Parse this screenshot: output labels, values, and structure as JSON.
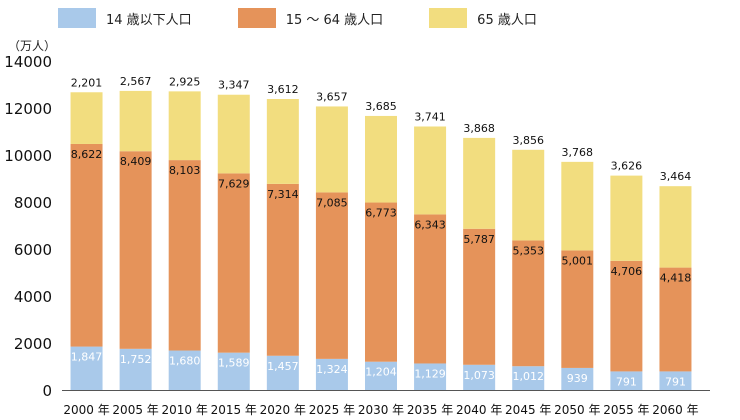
{
  "legend": {
    "items": [
      {
        "label": "14 歳以下人口",
        "color": "#a9c9ea"
      },
      {
        "label": "15 ～ 64 歳人口",
        "color": "#e5935a"
      },
      {
        "label": "65 歳人口",
        "color": "#f2dd7f"
      }
    ]
  },
  "chart_data": {
    "type": "bar",
    "stacked": true,
    "unit_label": "（万人）",
    "categories": [
      "2000 年",
      "2005 年",
      "2010 年",
      "2015 年",
      "2020 年",
      "2025 年",
      "2030 年",
      "2035 年",
      "2040 年",
      "2045 年",
      "2050 年",
      "2055 年",
      "2060 年"
    ],
    "series": [
      {
        "name": "14 歳以下人口",
        "color": "#a9c9ea",
        "values": [
          1847,
          1752,
          1680,
          1589,
          1457,
          1324,
          1204,
          1129,
          1073,
          1012,
          939,
          791,
          791
        ],
        "labels": [
          "1,847",
          "1,752",
          "1,680",
          "1,589",
          "1,457",
          "1,324",
          "1,204",
          "1,129",
          "1,073",
          "1,012",
          "939",
          "791",
          "791"
        ]
      },
      {
        "name": "15 ～ 64 歳人口",
        "color": "#e5935a",
        "values": [
          8622,
          8409,
          8103,
          7629,
          7314,
          7085,
          6773,
          6343,
          5787,
          5353,
          5001,
          4706,
          4418
        ],
        "labels": [
          "8,622",
          "8,409",
          "8,103",
          "7,629",
          "7,314",
          "7,085",
          "6,773",
          "6,343",
          "5,787",
          "5,353",
          "5,001",
          "4,706",
          "4,418"
        ]
      },
      {
        "name": "65 歳人口",
        "color": "#f2dd7f",
        "values": [
          2201,
          2567,
          2925,
          3347,
          3612,
          3657,
          3685,
          3741,
          3868,
          3856,
          3768,
          3626,
          3464
        ],
        "labels": [
          "2,201",
          "2,567",
          "2,925",
          "3,347",
          "3,612",
          "3,657",
          "3,685",
          "3,741",
          "3,868",
          "3,856",
          "3,768",
          "3,626",
          "3,464"
        ]
      }
    ],
    "ylim": [
      0,
      14000
    ],
    "yticks": [
      0,
      2000,
      4000,
      6000,
      8000,
      10000,
      12000,
      14000
    ],
    "grid": false,
    "legend_position": "top"
  }
}
